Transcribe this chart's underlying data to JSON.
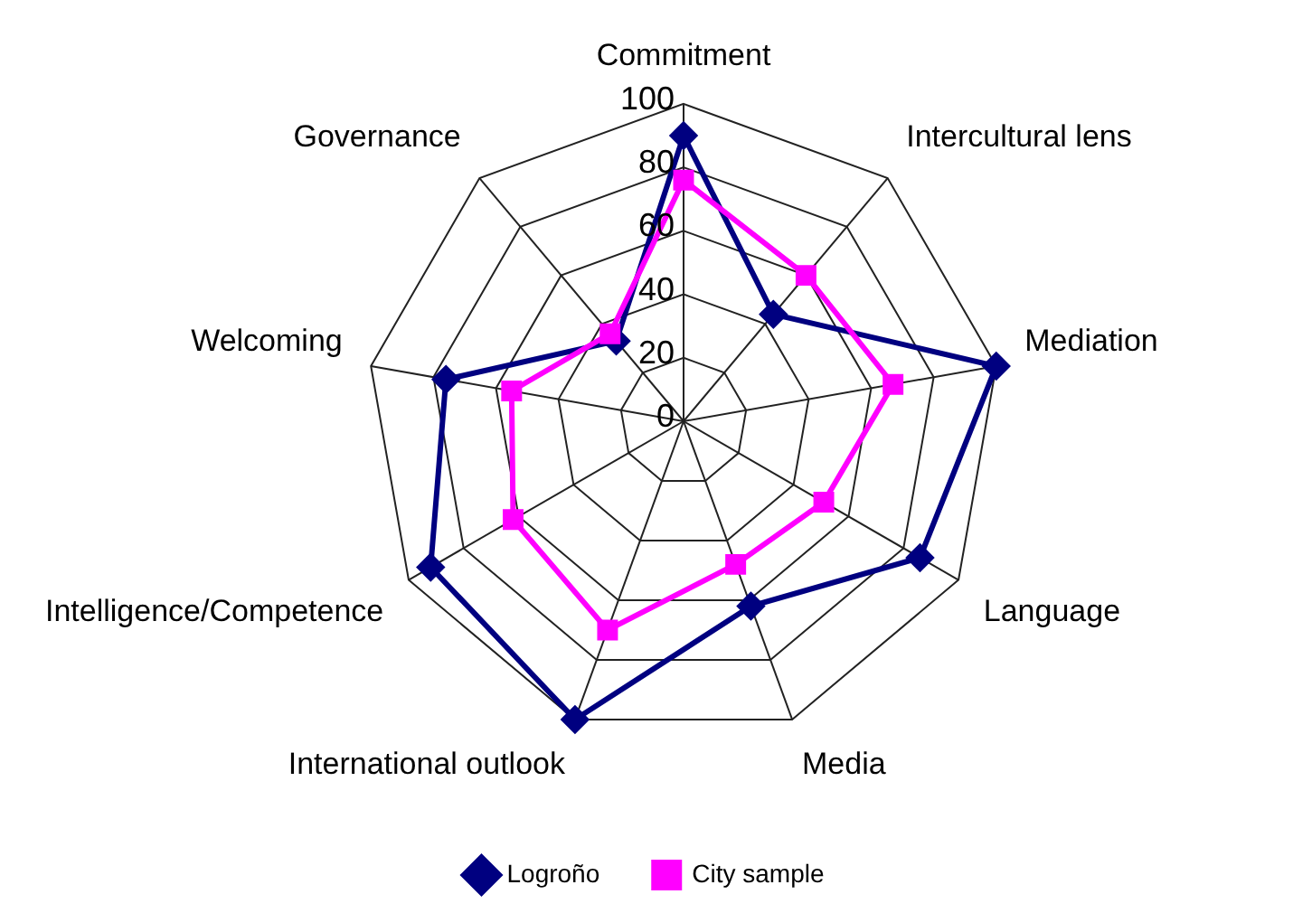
{
  "chart_data": {
    "type": "radar",
    "categories": [
      "Commitment",
      "Intercultural lens",
      "Mediation",
      "Language",
      "Media",
      "International outlook",
      "Intelligence/Competence",
      "Welcoming",
      "Governance"
    ],
    "series": [
      {
        "name": "Logroño",
        "color": "#000080",
        "marker": "diamond",
        "values": [
          90,
          44,
          100,
          86,
          62,
          100,
          92,
          76,
          33
        ]
      },
      {
        "name": "City sample",
        "color": "#ff00ff",
        "marker": "square",
        "values": [
          76,
          60,
          67,
          51,
          48,
          70,
          62,
          55,
          36
        ]
      }
    ],
    "ylim": [
      0,
      100
    ],
    "yticks": [
      0,
      20,
      40,
      60,
      80,
      100
    ],
    "grid": true,
    "legend": "bottom"
  }
}
